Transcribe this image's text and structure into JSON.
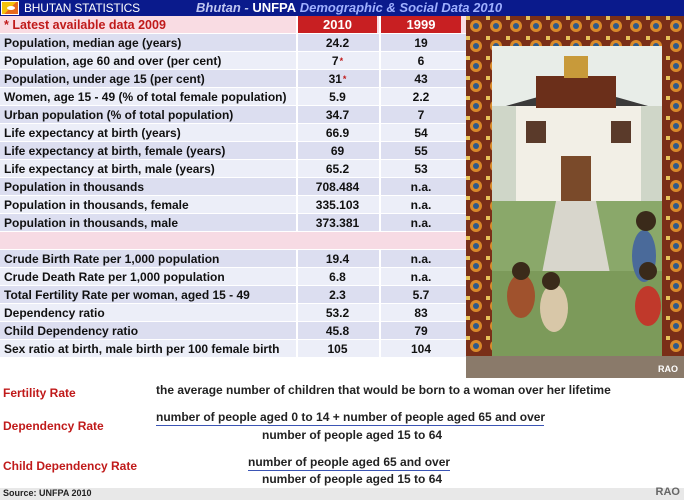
{
  "header": {
    "left_title": "BHUTAN STATISTICS",
    "right_title_prefix": "Bhutan - ",
    "right_title_org": "UNFPA",
    "right_title_suffix": " Demographic & Social Data 2010"
  },
  "table": {
    "note": "* Latest available data 2009",
    "col1_header": "2010",
    "col2_header": "1999",
    "rows_group1": [
      {
        "label": "Population, median age (years)",
        "v2010": "24.2",
        "v1999": "19",
        "star": ""
      },
      {
        "label": "Population, age 60 and over (per cent)",
        "v2010": "7",
        "v1999": "6",
        "star": "*"
      },
      {
        "label": "Population, under age 15 (per cent)",
        "v2010": "31",
        "v1999": "43",
        "star": "*"
      },
      {
        "label": "Women, age 15 - 49  (% of total female population)",
        "v2010": "5.9",
        "v1999": "2.2",
        "star": ""
      },
      {
        "label": "Urban population (% of total population)",
        "v2010": "34.7",
        "v1999": "7",
        "star": ""
      },
      {
        "label": "Life expectancy at birth (years)",
        "v2010": "66.9",
        "v1999": "54",
        "star": ""
      },
      {
        "label": "Life expectancy at birth, female (years)",
        "v2010": "69",
        "v1999": "55",
        "star": ""
      },
      {
        "label": "Life expectancy at birth, male (years)",
        "v2010": "65.2",
        "v1999": "53",
        "star": ""
      },
      {
        "label": "Population in thousands",
        "v2010": "708.484",
        "v1999": "n.a.",
        "star": ""
      },
      {
        "label": "Population in thousands, female",
        "v2010": "335.103",
        "v1999": "n.a.",
        "star": ""
      },
      {
        "label": "Population in thousands, male",
        "v2010": "373.381",
        "v1999": "n.a.",
        "star": ""
      }
    ],
    "rows_group2": [
      {
        "label": "Crude Birth Rate per 1,000 population",
        "v2010": "19.4",
        "v1999": "n.a."
      },
      {
        "label": "Crude Death Rate per 1,000 population",
        "v2010": "6.8",
        "v1999": "n.a."
      },
      {
        "label": "Total Fertility Rate per woman, aged 15 - 49",
        "v2010": "2.3",
        "v1999": "5.7"
      },
      {
        "label": "Dependency ratio",
        "v2010": "53.2",
        "v1999": "83"
      },
      {
        "label": "Child Dependency ratio",
        "v2010": "45.8",
        "v1999": "79"
      },
      {
        "label": "Sex ratio at birth, male birth per 100 female birth",
        "v2010": "105",
        "v1999": "104"
      }
    ]
  },
  "photo": {
    "credit": "RAO"
  },
  "definitions": {
    "fertility_label": "Fertility Rate",
    "fertility_text": "the average number of children that would be born to a woman over her lifetime",
    "dependency_label": "Dependency Rate",
    "dependency_numerator": "number of people aged 0 to 14 + number of people aged 65 and over",
    "dependency_denominator": "number of people aged 15 to 64",
    "child_label": "Child Dependency Rate",
    "child_numerator": "number of people aged 65 and over",
    "child_denominator": "number of people aged 15 to 64"
  },
  "footer": {
    "source": "Source: UNFPA   2010",
    "credit": "RAO"
  },
  "colors": {
    "header_bg": "#0a1a8c",
    "accent_red": "#c81f22",
    "row_blue": "#dcdef0"
  }
}
